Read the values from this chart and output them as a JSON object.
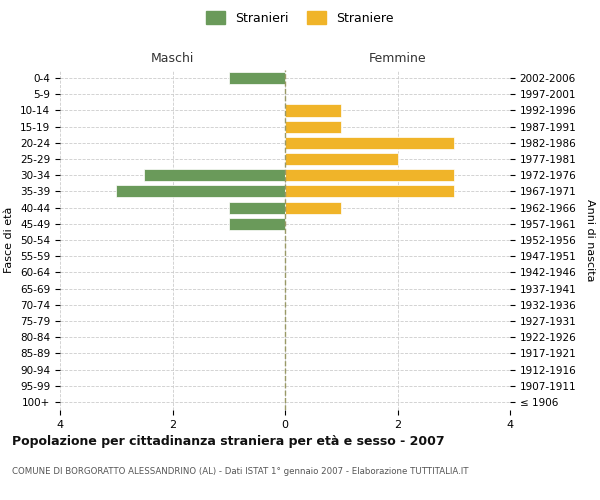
{
  "age_groups": [
    "100+",
    "95-99",
    "90-94",
    "85-89",
    "80-84",
    "75-79",
    "70-74",
    "65-69",
    "60-64",
    "55-59",
    "50-54",
    "45-49",
    "40-44",
    "35-39",
    "30-34",
    "25-29",
    "20-24",
    "15-19",
    "10-14",
    "5-9",
    "0-4"
  ],
  "birth_years": [
    "≤ 1906",
    "1907-1911",
    "1912-1916",
    "1917-1921",
    "1922-1926",
    "1927-1931",
    "1932-1936",
    "1937-1941",
    "1942-1946",
    "1947-1951",
    "1952-1956",
    "1957-1961",
    "1962-1966",
    "1967-1971",
    "1972-1976",
    "1977-1981",
    "1982-1986",
    "1987-1991",
    "1992-1996",
    "1997-2001",
    "2002-2006"
  ],
  "maschi": [
    0,
    0,
    0,
    0,
    0,
    0,
    0,
    0,
    0,
    0,
    0,
    1,
    1,
    3,
    2.5,
    0,
    0,
    0,
    0,
    0,
    1
  ],
  "femmine": [
    0,
    0,
    0,
    0,
    0,
    0,
    0,
    0,
    0,
    0,
    0,
    0,
    1,
    3,
    3,
    2,
    3,
    1,
    1,
    0,
    0
  ],
  "color_maschi": "#6a9a5a",
  "color_femmine": "#f0b429",
  "xlim": 4,
  "xlabel_left": "Maschi",
  "xlabel_right": "Femmine",
  "ylabel_left": "Fasce di età",
  "ylabel_right": "Anni di nascita",
  "title": "Popolazione per cittadinanza straniera per età e sesso - 2007",
  "subtitle": "COMUNE DI BORGORATTO ALESSANDRINO (AL) - Dati ISTAT 1° gennaio 2007 - Elaborazione TUTTITALIA.IT",
  "legend_maschi": "Stranieri",
  "legend_femmine": "Straniere",
  "bg_color": "#ffffff",
  "grid_color": "#cccccc",
  "bar_height": 0.75
}
